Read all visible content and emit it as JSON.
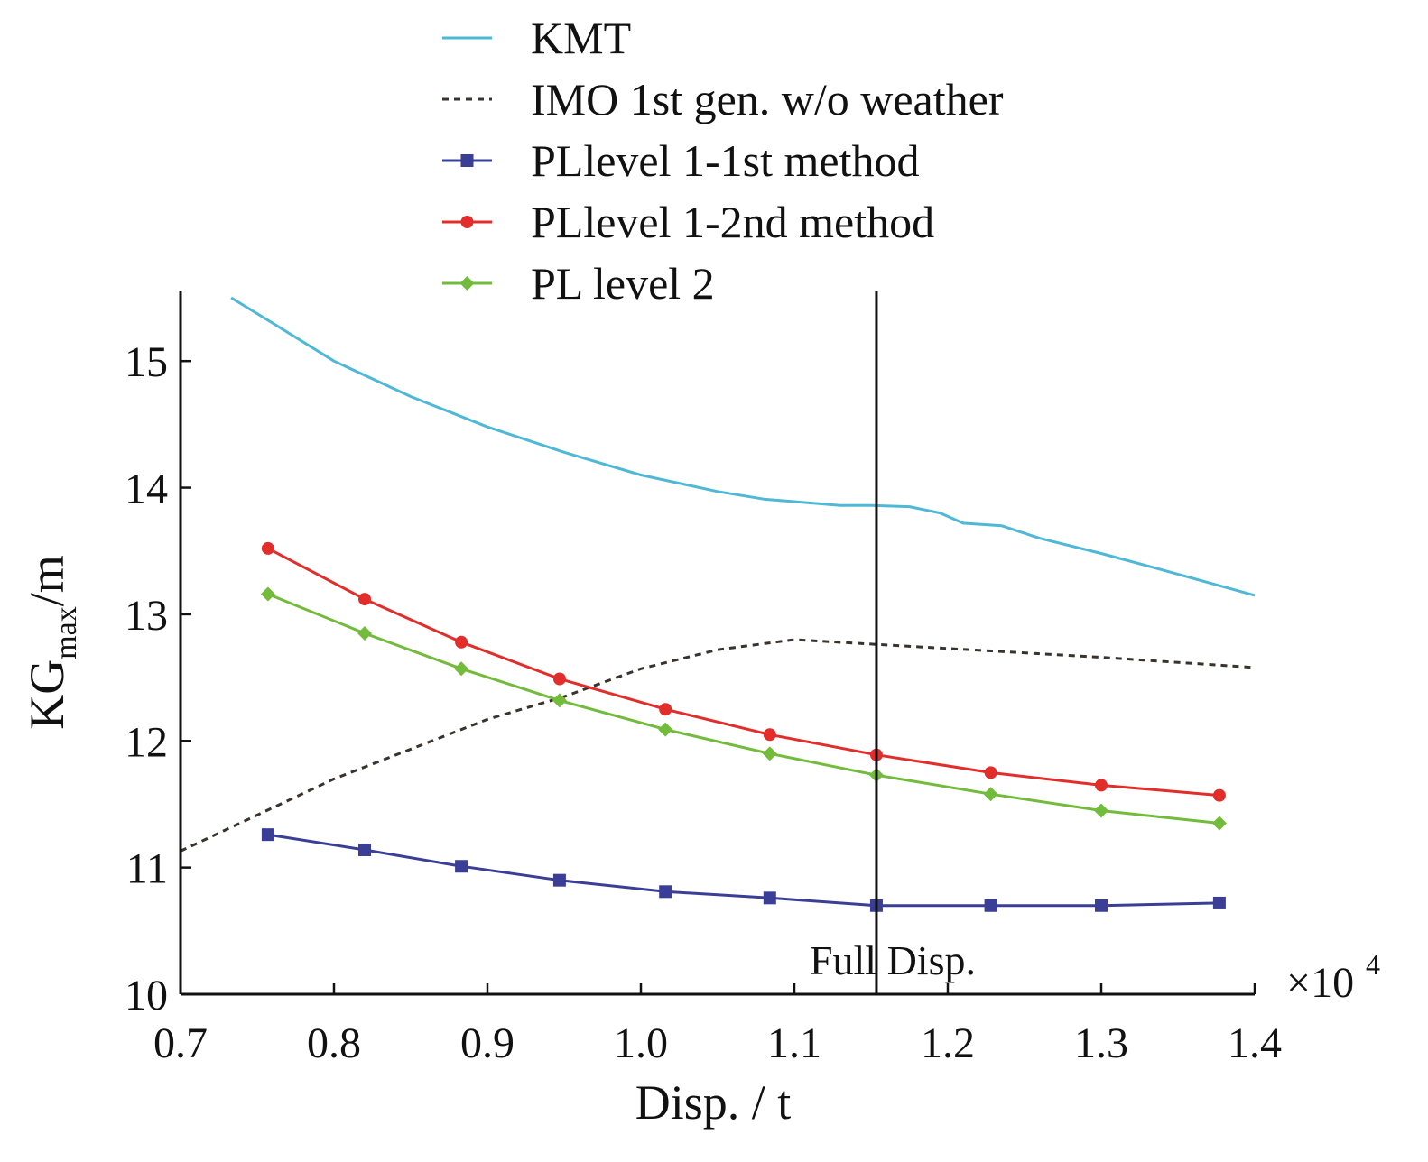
{
  "chart_data": {
    "type": "line",
    "title": "",
    "xlabel": "Disp. / t",
    "ylabel": {
      "main": "KG",
      "sub": "max",
      "suffix": "/m"
    },
    "x_multiplier": {
      "sign": "×10",
      "exponent": "4"
    },
    "xlim": [
      0.7,
      1.4
    ],
    "ylim": [
      10,
      15.55
    ],
    "xticks": [
      0.7,
      0.8,
      0.9,
      1.0,
      1.1,
      1.2,
      1.3,
      1.4
    ],
    "xtick_labels": [
      "0.7",
      "0.8",
      "0.9",
      "1.0",
      "1.1",
      "1.2",
      "1.3",
      "1.4"
    ],
    "yticks": [
      10,
      11,
      12,
      13,
      14,
      15
    ],
    "ytick_labels": [
      "10",
      "11",
      "12",
      "13",
      "14",
      "15"
    ],
    "grid": false,
    "legend_position": "top-center",
    "annotations": [
      {
        "type": "vline",
        "x": 1.1535,
        "label": "Full Disp."
      }
    ],
    "series": [
      {
        "name": "KMT",
        "color": "#4FB8D6",
        "style": "solid",
        "marker": "none",
        "x": [
          0.733,
          0.76,
          0.8,
          0.85,
          0.9,
          0.95,
          1.0,
          1.05,
          1.08,
          1.1,
          1.13,
          1.15,
          1.175,
          1.195,
          1.21,
          1.235,
          1.26,
          1.3,
          1.34,
          1.4
        ],
        "y": [
          15.5,
          15.3,
          15.0,
          14.72,
          14.48,
          14.28,
          14.1,
          13.97,
          13.91,
          13.89,
          13.86,
          13.86,
          13.85,
          13.8,
          13.72,
          13.7,
          13.6,
          13.48,
          13.35,
          13.15
        ]
      },
      {
        "name": "IMO 1st gen. w/o weather",
        "color": "#3A322C",
        "style": "dashed",
        "marker": "none",
        "x": [
          0.7,
          0.8,
          0.9,
          0.95,
          1.0,
          1.05,
          1.1,
          1.2,
          1.3,
          1.4
        ],
        "y": [
          11.13,
          11.7,
          12.17,
          12.35,
          12.57,
          12.72,
          12.8,
          12.73,
          12.66,
          12.58
        ]
      },
      {
        "name": "PLlevel 1-1st method",
        "color": "#3A3E96",
        "style": "solid",
        "marker": "square",
        "x": [
          0.757,
          0.82,
          0.883,
          0.947,
          1.016,
          1.084,
          1.1535,
          1.228,
          1.3,
          1.377
        ],
        "y": [
          11.26,
          11.14,
          11.01,
          10.9,
          10.81,
          10.76,
          10.7,
          10.7,
          10.7,
          10.72
        ]
      },
      {
        "name": "PLlevel 1-2nd method",
        "color": "#E32D2A",
        "style": "solid",
        "marker": "circle",
        "x": [
          0.757,
          0.82,
          0.883,
          0.947,
          1.016,
          1.084,
          1.1535,
          1.228,
          1.3,
          1.377
        ],
        "y": [
          13.52,
          13.12,
          12.78,
          12.49,
          12.25,
          12.05,
          11.89,
          11.75,
          11.65,
          11.57
        ]
      },
      {
        "name": "PL level 2",
        "color": "#72BB3B",
        "style": "solid",
        "marker": "diamond",
        "x": [
          0.757,
          0.82,
          0.883,
          0.947,
          1.016,
          1.084,
          1.1535,
          1.228,
          1.3,
          1.377
        ],
        "y": [
          13.16,
          12.85,
          12.57,
          12.32,
          12.09,
          11.9,
          11.73,
          11.58,
          11.45,
          11.35
        ]
      }
    ]
  }
}
